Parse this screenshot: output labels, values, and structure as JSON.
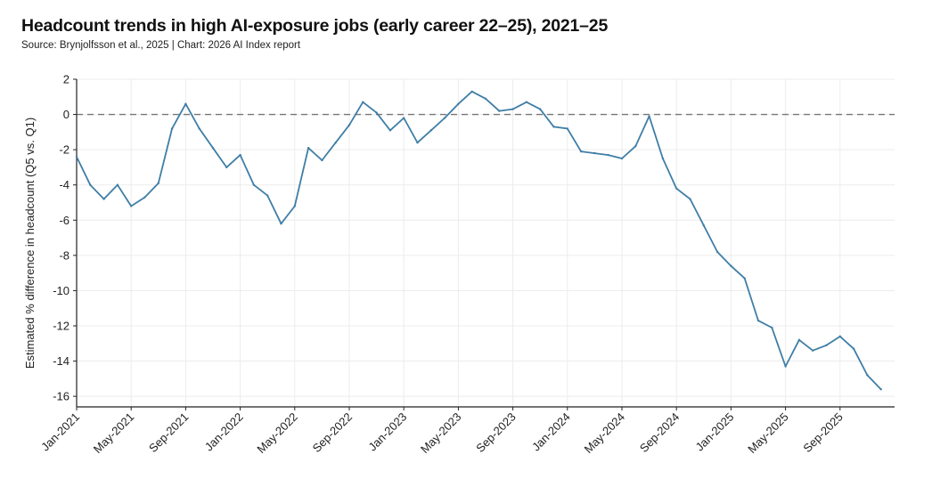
{
  "header": {
    "title": "Headcount trends in high AI-exposure jobs (early career 22–25), 2021–25",
    "subtitle": "Source: Brynjolfsson et al., 2025 | Chart: 2026 AI Index report"
  },
  "colors": {
    "line": "#3f7ea6",
    "grid": "#ececec",
    "zero_line": "#777777",
    "axis": "#222222"
  },
  "chart_data": {
    "type": "line",
    "title": "Headcount trends in high AI-exposure jobs (early career 22–25), 2021–25",
    "xlabel": "",
    "ylabel": "Estimated % difference in headcount (Q5 vs. Q1)",
    "ylim": [
      -16.6,
      2
    ],
    "yticks": [
      2,
      0,
      -2,
      -4,
      -6,
      -8,
      -10,
      -12,
      -14,
      -16
    ],
    "xlim": [
      "2021-01",
      "2026-01"
    ],
    "xticks": [
      "2021-01",
      "2021-05",
      "2021-09",
      "2022-01",
      "2022-05",
      "2022-09",
      "2023-01",
      "2023-05",
      "2023-09",
      "2024-01",
      "2024-05",
      "2024-09",
      "2025-01",
      "2025-05",
      "2025-09"
    ],
    "xtick_labels": [
      "Jan-2021",
      "May-2021",
      "Sep-2021",
      "Jan-2022",
      "May-2022",
      "Sep-2022",
      "Jan-2023",
      "May-2023",
      "Sep-2023",
      "Jan-2024",
      "May-2024",
      "Sep-2024",
      "Jan-2025",
      "May-2025",
      "Sep-2025"
    ],
    "grid": true,
    "reference_line": {
      "y": 0,
      "style": "dashed"
    },
    "series": [
      {
        "x": [
          "2021-01",
          "2021-02",
          "2021-03",
          "2021-04",
          "2021-05",
          "2021-06",
          "2021-07",
          "2021-08",
          "2021-09",
          "2021-10",
          "2021-11",
          "2021-12",
          "2022-01",
          "2022-02",
          "2022-03",
          "2022-04",
          "2022-05",
          "2022-06",
          "2022-07",
          "2022-08",
          "2022-09",
          "2022-10",
          "2022-11",
          "2022-12",
          "2023-01",
          "2023-02",
          "2023-03",
          "2023-04",
          "2023-05",
          "2023-06",
          "2023-07",
          "2023-08",
          "2023-09",
          "2023-10",
          "2023-11",
          "2023-12",
          "2024-01",
          "2024-02",
          "2024-03",
          "2024-04",
          "2024-05",
          "2024-06",
          "2024-07",
          "2024-08",
          "2024-09",
          "2024-10",
          "2024-11",
          "2024-12",
          "2025-01",
          "2025-02",
          "2025-03",
          "2025-04",
          "2025-05",
          "2025-06",
          "2025-07",
          "2025-08",
          "2025-09",
          "2025-10",
          "2025-11",
          "2025-12"
        ],
        "values": [
          -2.4,
          -4.0,
          -4.8,
          -4.0,
          -5.2,
          -4.7,
          -3.9,
          -0.8,
          0.6,
          -0.8,
          -1.9,
          -3.0,
          -2.3,
          -4.0,
          -4.6,
          -6.2,
          -5.2,
          -1.9,
          -2.6,
          -1.6,
          -0.6,
          0.7,
          0.1,
          -0.9,
          -0.2,
          -1.6,
          -0.9,
          -0.2,
          0.6,
          1.3,
          0.9,
          0.2,
          0.3,
          0.7,
          0.3,
          -0.7,
          -0.8,
          -2.1,
          -2.2,
          -2.3,
          -2.5,
          -1.8,
          -0.1,
          -2.5,
          -4.2,
          -4.8,
          -6.3,
          -7.8,
          -8.6,
          -9.3,
          -11.7,
          -12.1,
          -14.3,
          -12.8,
          -13.4,
          -13.1,
          -12.6,
          -13.3,
          -14.8,
          -15.6
        ]
      }
    ]
  }
}
